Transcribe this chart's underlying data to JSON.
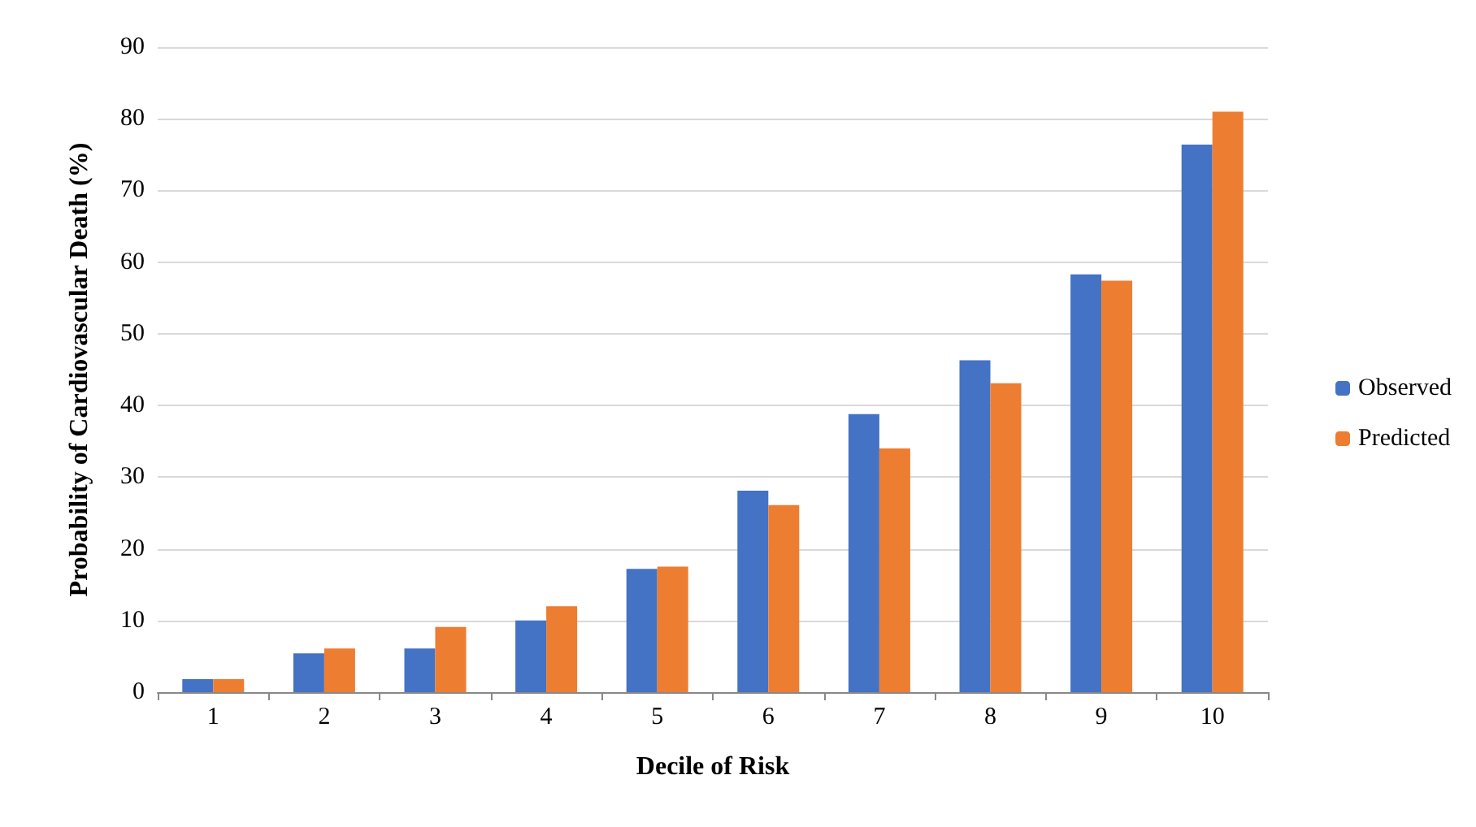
{
  "chart_data": {
    "type": "bar",
    "xlabel": "Decile of Risk",
    "ylabel": "Probability of Cardiovascular Death (%)",
    "categories": [
      "1",
      "2",
      "3",
      "4",
      "5",
      "6",
      "7",
      "8",
      "9",
      "10"
    ],
    "series": [
      {
        "name": "Observed",
        "color": "#4472c4",
        "values": [
          1.8,
          5.4,
          6.1,
          10,
          17.2,
          28.1,
          38.8,
          46.3,
          58.3,
          76.4
        ]
      },
      {
        "name": "Predicted",
        "color": "#ed7d31",
        "values": [
          1.8,
          6.1,
          9.1,
          12,
          17.5,
          26.1,
          34,
          43.1,
          57.4,
          81
        ]
      }
    ],
    "ylim": [
      0,
      90
    ],
    "yticks": [
      0,
      10,
      20,
      30,
      40,
      50,
      60,
      70,
      80,
      90
    ],
    "grid": "y",
    "legend": "right"
  }
}
